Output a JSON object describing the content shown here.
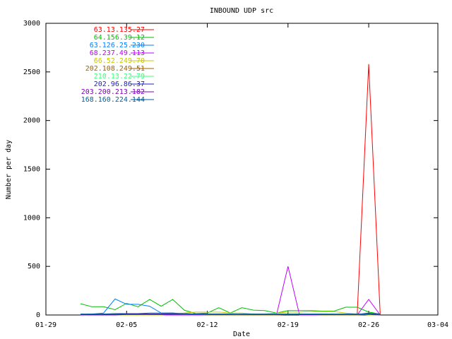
{
  "chart_data": {
    "type": "line",
    "title": "INBOUND UDP src",
    "xlabel": "Date",
    "ylabel": "Number per day",
    "x": [
      "02-01",
      "02-02",
      "02-03",
      "02-04",
      "02-05",
      "02-06",
      "02-07",
      "02-08",
      "02-09",
      "02-10",
      "02-11",
      "02-12",
      "02-13",
      "02-14",
      "02-15",
      "02-16",
      "02-17",
      "02-18",
      "02-19",
      "02-20",
      "02-21",
      "02-22",
      "02-23",
      "02-24",
      "02-25",
      "02-26",
      "02-27"
    ],
    "xlim": [
      "01-29",
      "03-04"
    ],
    "xticks": [
      "01-29",
      "02-05",
      "02-12",
      "02-19",
      "02-26",
      "03-04"
    ],
    "ylim": [
      0,
      3000
    ],
    "yticks": [
      0,
      500,
      1000,
      1500,
      2000,
      2500,
      3000
    ],
    "grid": false,
    "legend": "top-left",
    "series": [
      {
        "name": "63.13.135.27",
        "color": "#ff0000",
        "values": [
          5,
          5,
          10,
          5,
          5,
          5,
          5,
          5,
          5,
          5,
          0,
          0,
          0,
          0,
          0,
          0,
          0,
          0,
          5,
          5,
          5,
          5,
          5,
          5,
          0,
          2580,
          0
        ]
      },
      {
        "name": "64.156.39.12",
        "color": "#00c000",
        "values": [
          115,
          85,
          85,
          55,
          120,
          85,
          160,
          90,
          160,
          50,
          15,
          20,
          75,
          20,
          75,
          50,
          45,
          20,
          45,
          45,
          45,
          40,
          40,
          80,
          80,
          30,
          10
        ]
      },
      {
        "name": "63.126.25.230",
        "color": "#0080ff",
        "values": [
          5,
          10,
          20,
          165,
          110,
          110,
          90,
          20,
          20,
          10,
          5,
          5,
          5,
          5,
          5,
          5,
          5,
          5,
          5,
          5,
          5,
          5,
          5,
          5,
          5,
          5,
          5
        ]
      },
      {
        "name": "68.237.49.113",
        "color": "#c000ff",
        "values": [
          0,
          0,
          0,
          0,
          0,
          0,
          0,
          0,
          0,
          0,
          0,
          0,
          0,
          0,
          0,
          0,
          0,
          0,
          500,
          0,
          0,
          0,
          0,
          0,
          0,
          160,
          0
        ]
      },
      {
        "name": "66.52.249.70",
        "color": "#c8c800",
        "values": [
          0,
          0,
          0,
          0,
          0,
          0,
          0,
          0,
          10,
          20,
          30,
          30,
          30,
          20,
          20,
          10,
          10,
          20,
          30,
          30,
          35,
          35,
          35,
          20,
          10,
          0,
          0
        ]
      },
      {
        "name": "202.108.249.51",
        "color": "#a06000",
        "values": [
          0,
          0,
          0,
          5,
          5,
          5,
          5,
          5,
          5,
          5,
          5,
          0,
          0,
          0,
          0,
          0,
          0,
          0,
          5,
          5,
          5,
          0,
          0,
          0,
          0,
          5,
          0
        ]
      },
      {
        "name": "210.13.22.79",
        "color": "#40ff80",
        "values": [
          0,
          0,
          5,
          5,
          10,
          10,
          10,
          10,
          10,
          5,
          5,
          5,
          5,
          5,
          5,
          5,
          5,
          5,
          10,
          10,
          10,
          10,
          5,
          5,
          5,
          5,
          0
        ]
      },
      {
        "name": "202.96.86.37",
        "color": "#2020c0",
        "values": [
          5,
          5,
          5,
          5,
          10,
          10,
          10,
          10,
          15,
          15,
          10,
          10,
          10,
          10,
          5,
          5,
          5,
          5,
          5,
          5,
          5,
          5,
          5,
          5,
          5,
          20,
          5
        ]
      },
      {
        "name": "203.200.213.182",
        "color": "#8000c0",
        "values": [
          0,
          0,
          0,
          0,
          5,
          5,
          5,
          5,
          5,
          5,
          5,
          5,
          5,
          5,
          5,
          5,
          5,
          5,
          5,
          5,
          5,
          5,
          5,
          5,
          5,
          5,
          0
        ]
      },
      {
        "name": "168.160.224.144",
        "color": "#0060a0",
        "values": [
          10,
          10,
          10,
          15,
          15,
          15,
          20,
          20,
          20,
          15,
          10,
          10,
          10,
          10,
          10,
          10,
          10,
          10,
          10,
          10,
          10,
          10,
          10,
          10,
          10,
          10,
          5
        ]
      }
    ]
  }
}
